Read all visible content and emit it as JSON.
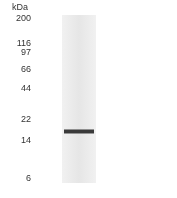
{
  "chart_data": {
    "type": "scatter",
    "y_label": "kDa",
    "categories": [
      null
    ],
    "values": [
      17
    ],
    "ylim": [
      6,
      200
    ],
    "yticks": [
      6,
      14,
      22,
      44,
      66,
      97,
      116,
      200
    ],
    "log": "y",
    "grid": false,
    "tick_labels": "y",
    "marker": "line",
    "color": "#3a3a3a"
  }
}
